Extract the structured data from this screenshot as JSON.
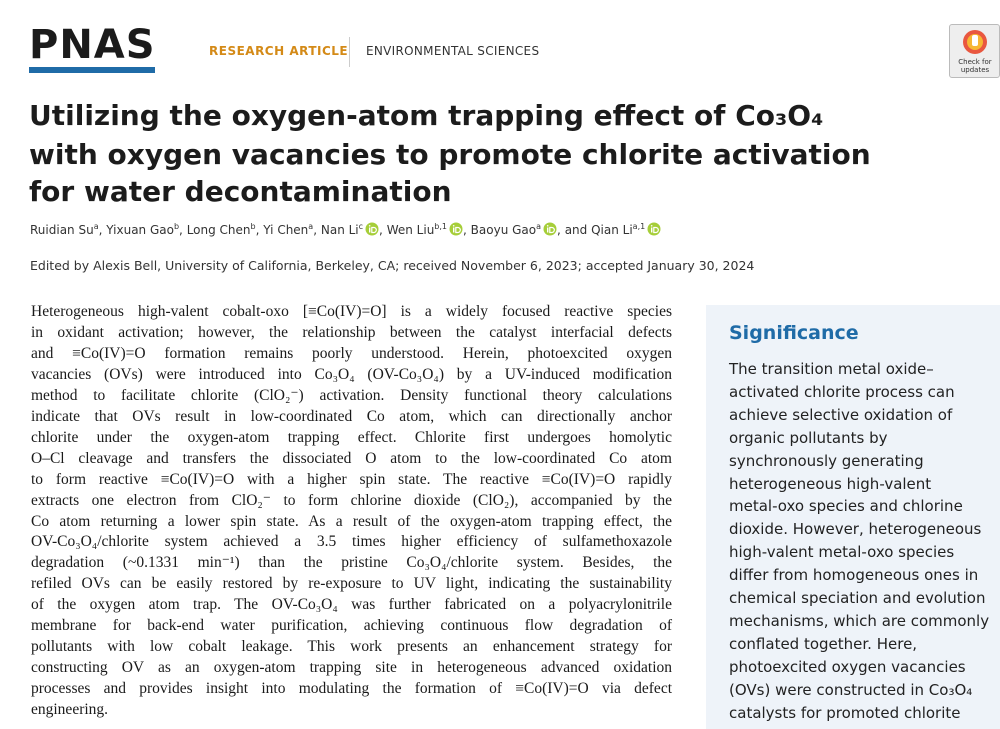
{
  "header": {
    "logo": "PNAS",
    "article_type": "RESEARCH ARTICLE",
    "section": "ENVIRONMENTAL SCIENCES",
    "badge": [
      "Check for",
      "updates"
    ]
  },
  "title": [
    "Utilizing the oxygen-atom trapping effect of Co₃O₄",
    "with oxygen vacancies to promote chlorite activation",
    "for water decontamination"
  ],
  "authors": {
    "separator": ",",
    "conjunction": "and",
    "list": [
      {
        "name": "Ruidian Su",
        "aff": "a",
        "orcid": false
      },
      {
        "name": "Yixuan Gao",
        "aff": "b",
        "orcid": false
      },
      {
        "name": "Long Chen",
        "aff": "b",
        "orcid": false
      },
      {
        "name": "Yi Chen",
        "aff": "a",
        "orcid": false
      },
      {
        "name": "Nan Li",
        "aff": "c",
        "orcid": true
      },
      {
        "name": "Wen Liu",
        "aff": "b,1",
        "orcid": true
      },
      {
        "name": "Baoyu Gao",
        "aff": "a",
        "orcid": true
      },
      {
        "name": "Qian Li",
        "aff": "a,1",
        "orcid": true
      }
    ]
  },
  "edited": "Edited by Alexis Bell, University of California, Berkeley, CA; received November 6, 2023; accepted January 30, 2024",
  "abstract": [
    "Heterogeneous high-valent cobalt-oxo [≡Co(IV)=O] is a widely focused reactive species",
    "in oxidant activation; however, the relationship between the catalyst interfacial defects",
    "and ≡Co(IV)=O formation remains poorly understood. Herein, photoexcited oxygen",
    "vacancies (OVs) were introduced into Co₃O₄ (OV-Co₃O₄) by a UV-induced modification",
    "method to facilitate chlorite (ClO₂⁻) activation. Density functional theory calculations",
    "indicate that OVs result in low-coordinated Co atom, which can directionally anchor",
    "chlorite under the oxygen-atom trapping effect. Chlorite first undergoes homolytic",
    "O–Cl cleavage and transfers the dissociated O atom to the low-coordinated Co atom",
    "to form reactive ≡Co(IV)=O with a higher spin state. The reactive ≡Co(IV)=O rapidly",
    "extracts one electron from ClO₂⁻ to form chlorine dioxide (ClO₂), accompanied by the",
    "Co atom returning a lower spin state. As a result of the oxygen-atom trapping effect, the",
    "OV-Co₃O₄/chlorite system achieved a 3.5 times higher efficiency of sulfamethoxazole",
    "degradation (~0.1331 min⁻¹) than the pristine Co₃O₄/chlorite system. Besides, the",
    "refiled OVs can be easily restored by re-exposure to UV light, indicating the sustainability",
    "of the oxygen atom trap. The OV-Co₃O₄ was further fabricated on a polyacrylonitrile",
    "membrane for back-end water purification, achieving continuous flow degradation of",
    "pollutants with low cobalt leakage. This work presents an enhancement strategy for",
    "constructing OV as an oxygen-atom trapping site in heterogeneous advanced oxidation",
    "processes and provides insight into modulating the formation of ≡Co(IV)=O via defect",
    "engineering."
  ],
  "significance": {
    "heading": "Significance",
    "lines": [
      "The transition metal oxide–",
      "activated chlorite process can",
      "achieve selective oxidation of",
      "organic pollutants by",
      "synchronously generating",
      "heterogeneous high-valent",
      "metal-oxo species and chlorine",
      "dioxide. However, heterogeneous",
      "high-valent metal-oxo species",
      "differ from homogeneous ones in",
      "chemical speciation and evolution",
      "mechanisms, which are commonly",
      "conflated together. Here,",
      "photoexcited oxygen vacancies",
      "(OVs) were constructed in Co₃O₄",
      "catalysts for promoted chlorite"
    ]
  }
}
